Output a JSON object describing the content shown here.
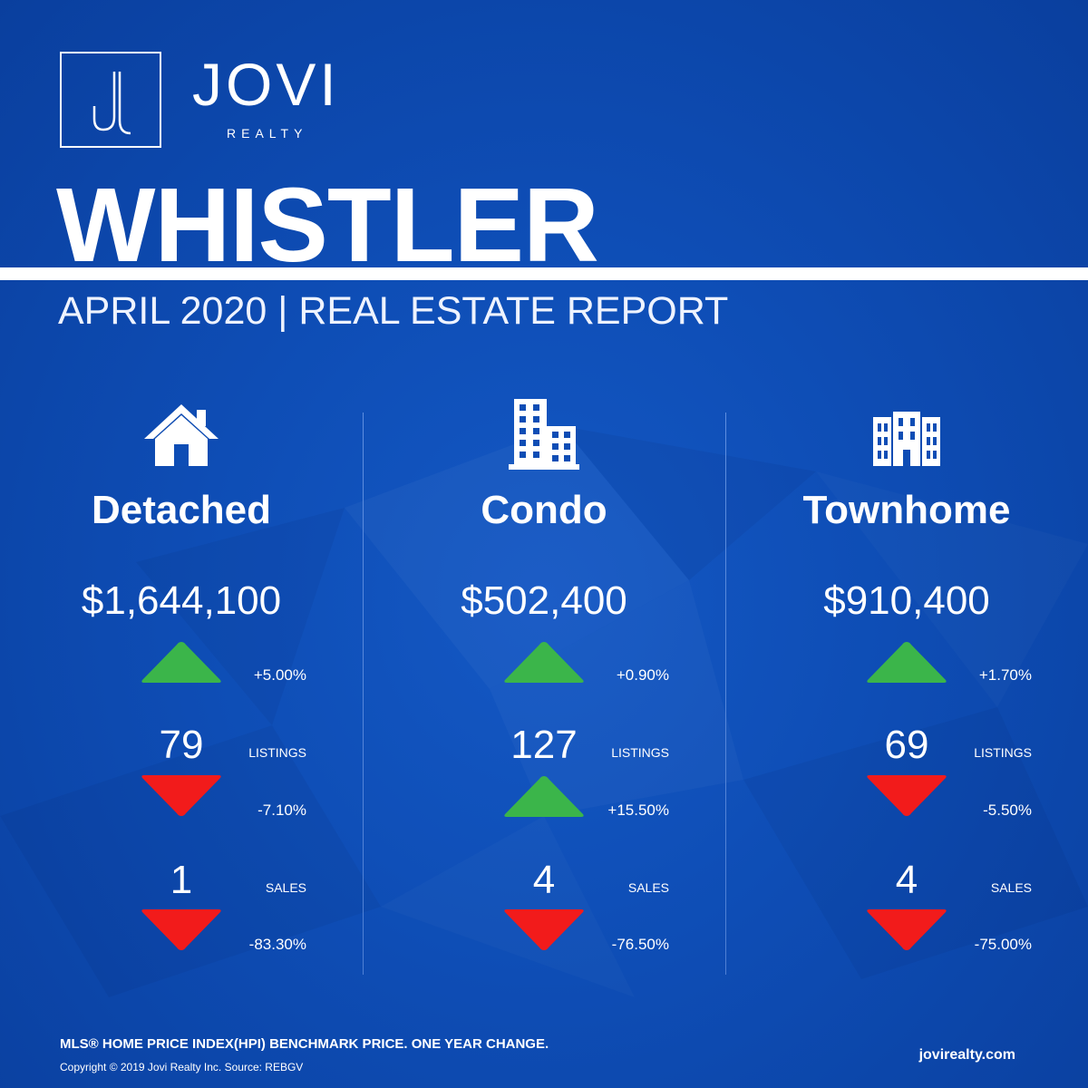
{
  "brand": {
    "name": "JOVI",
    "sub": "REALTY",
    "logo_letter": "J"
  },
  "header": {
    "city": "WHISTLER",
    "subtitle": "APRIL 2020 | REAL ESTATE REPORT"
  },
  "colors": {
    "background": "#0e4db5",
    "up": "#3bb54a",
    "down": "#f21b1b",
    "text": "#ffffff"
  },
  "columns": [
    {
      "icon": "house-icon",
      "title": "Detached",
      "price": "$1,644,100",
      "price_change": {
        "direction": "up",
        "value": "+5.00%"
      },
      "listings": {
        "count": "79",
        "label": "LISTINGS",
        "direction": "down",
        "value": "-7.10%"
      },
      "sales": {
        "count": "1",
        "label": "SALES",
        "direction": "down",
        "value": "-83.30%"
      }
    },
    {
      "icon": "condo-building-icon",
      "title": "Condo",
      "price": "$502,400",
      "price_change": {
        "direction": "up",
        "value": "+0.90%"
      },
      "listings": {
        "count": "127",
        "label": "LISTINGS",
        "direction": "up",
        "value": "+15.50%"
      },
      "sales": {
        "count": "4",
        "label": "SALES",
        "direction": "down",
        "value": "-76.50%"
      }
    },
    {
      "icon": "townhome-building-icon",
      "title": "Townhome",
      "price": "$910,400",
      "price_change": {
        "direction": "up",
        "value": "+1.70%"
      },
      "listings": {
        "count": "69",
        "label": "LISTINGS",
        "direction": "down",
        "value": "-5.50%"
      },
      "sales": {
        "count": "4",
        "label": "SALES",
        "direction": "down",
        "value": "-75.00%"
      }
    }
  ],
  "footer": {
    "note": "MLS® HOME PRICE INDEX(HPI) BENCHMARK PRICE. ONE YEAR CHANGE.",
    "copyright": "Copyright © 2019 Jovi Realty Inc. Source: REBGV",
    "website": "jovirealty.com"
  }
}
